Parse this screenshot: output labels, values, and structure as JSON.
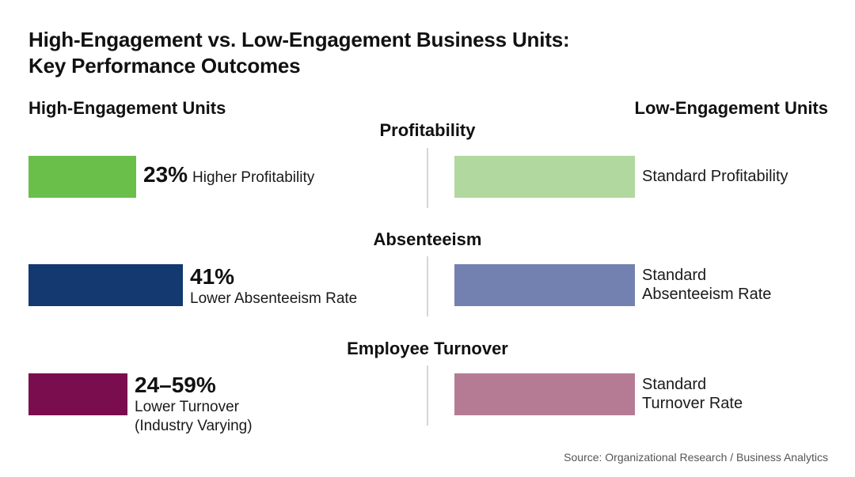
{
  "title_line1": "High-Engagement vs. Low-Engagement Business Units:",
  "title_line2": "Key Performance Outcomes",
  "left_heading": "High-Engagement Units",
  "right_heading": "Low-Engagement Units",
  "source": "Source: Organizational Research / Business Analytics",
  "chart_data": {
    "type": "bar",
    "title": "High-Engagement vs. Low-Engagement Business Units: Key Performance Outcomes",
    "categories": [
      "Profitability",
      "Absenteeism",
      "Employee Turnover"
    ],
    "series": [
      {
        "name": "High-Engagement Units",
        "colors": [
          "#6abf4b",
          "#143870",
          "#7a0d4d"
        ],
        "data_labels": [
          "23%",
          "41%",
          "24–59%"
        ],
        "descriptions": [
          [
            "Higher Profitability"
          ],
          [
            "Lower Absenteeism Rate"
          ],
          [
            "Lower Turnover",
            "(Industry Varying)"
          ]
        ]
      },
      {
        "name": "Low-Engagement Units",
        "colors": [
          "#b1d89e",
          "#7381b0",
          "#b67b94"
        ],
        "descriptions": [
          [
            "Standard Profitability"
          ],
          [
            "Standard",
            "Absenteeism Rate"
          ],
          [
            "Standard",
            "Turnover Rate"
          ]
        ]
      }
    ]
  }
}
